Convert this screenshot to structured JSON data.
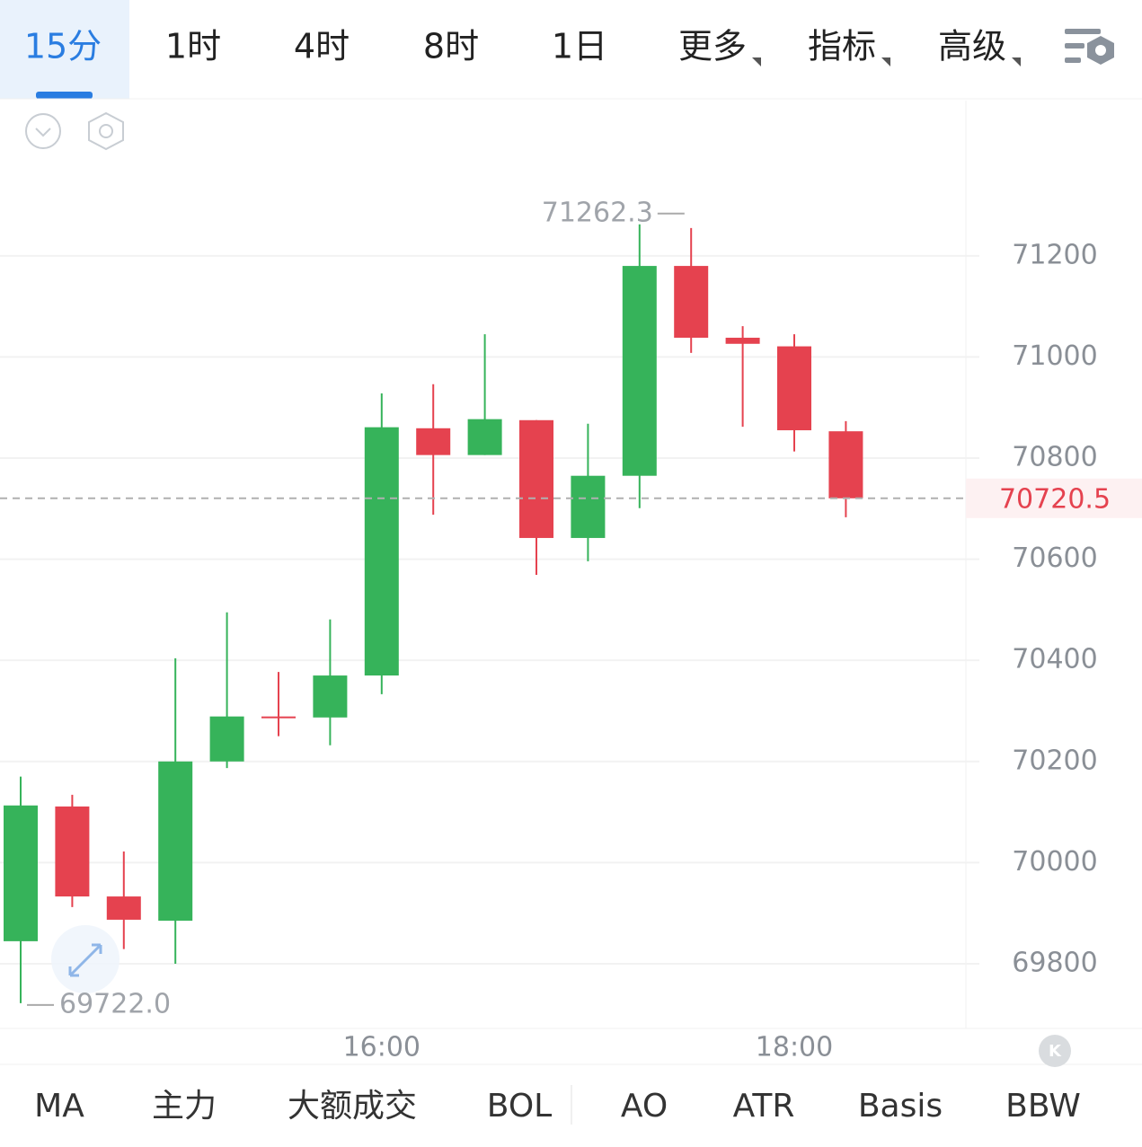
{
  "tabs": [
    "15分",
    "1时",
    "4时",
    "8时",
    "1日",
    "更多",
    "指标",
    "高级"
  ],
  "indicators": [
    "MA",
    "主力",
    "大额成交",
    "BOL",
    "AO",
    "ATR",
    "Basis",
    "BBW"
  ],
  "chart_data": {
    "type": "candlestick",
    "categories": [
      null,
      null,
      null,
      null,
      null,
      null,
      null,
      "16:00",
      null,
      null,
      null,
      null,
      null,
      null,
      null,
      "18:00",
      null
    ],
    "open": [
      69844.5,
      70111,
      69933,
      69885,
      70200,
      70289,
      70287,
      70370,
      70859,
      70806,
      70875,
      70642,
      70765,
      71180,
      71038,
      71021,
      70853
    ],
    "high": [
      70170,
      70134,
      70022,
      70404,
      70495,
      70377,
      70481,
      70928,
      70946,
      71045,
      70875,
      70868,
      71262.3,
      71255,
      71061,
      71045,
      70873
    ],
    "low": [
      69722,
      69912,
      69829,
      69800,
      70187,
      70250,
      70232,
      70333,
      70688,
      70806,
      70569,
      70596,
      70701,
      71008,
      70862,
      70813,
      70683
    ],
    "close": [
      70113,
      69933,
      69887,
      70200,
      70289,
      70287,
      70370,
      70861,
      70806,
      70877,
      70642,
      70765,
      71180,
      71038,
      71026,
      70855,
      70720.5
    ],
    "up_color": "#36b35a",
    "down_color": "#e5424f",
    "ylim": [
      69672,
      71507
    ],
    "yticks": [
      69800,
      70000,
      70200,
      70400,
      70600,
      70800,
      71000,
      71200
    ],
    "grid": true,
    "last_price": 70720.5,
    "extreme_labels": {
      "high": "71262.3",
      "low": "69722.0"
    }
  }
}
